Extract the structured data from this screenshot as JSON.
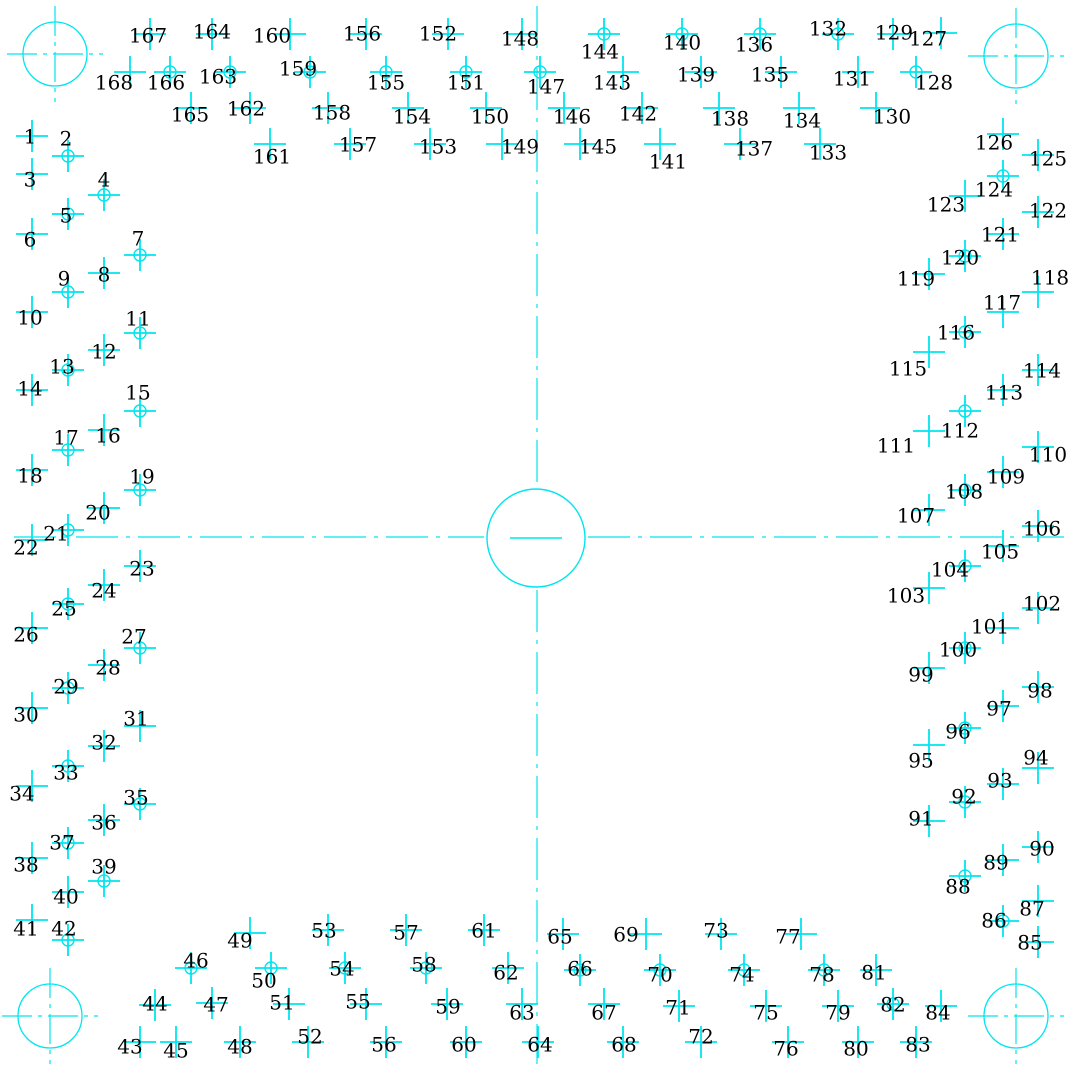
{
  "colors": {
    "line": "#00e5ee",
    "text": "#000000",
    "background": "#ffffff"
  },
  "labels": [
    "1",
    "2",
    "3",
    "4",
    "5",
    "6",
    "7",
    "8",
    "9",
    "10",
    "11",
    "12",
    "13",
    "14",
    "15",
    "16",
    "17",
    "18",
    "19",
    "20",
    "21",
    "22",
    "23",
    "24",
    "25",
    "26",
    "27",
    "28",
    "29",
    "30",
    "31",
    "32",
    "33",
    "34",
    "35",
    "36",
    "37",
    "38",
    "39",
    "40",
    "41",
    "42",
    "43",
    "44",
    "45",
    "46",
    "47",
    "48",
    "49",
    "50",
    "51",
    "52",
    "53",
    "54",
    "55",
    "56",
    "57",
    "58",
    "59",
    "60",
    "61",
    "62",
    "63",
    "64",
    "65",
    "66",
    "67",
    "68",
    "69",
    "70",
    "71",
    "72",
    "73",
    "74",
    "75",
    "76",
    "77",
    "78",
    "79",
    "80",
    "81",
    "82",
    "83",
    "84",
    "85",
    "86",
    "87",
    "88",
    "89",
    "90",
    "91",
    "92",
    "93",
    "94",
    "95",
    "96",
    "97",
    "98",
    "99",
    "100",
    "101",
    "102",
    "103",
    "104",
    "105",
    "106",
    "107",
    "108",
    "109",
    "110",
    "111",
    "112",
    "113",
    "114",
    "115",
    "116",
    "117",
    "118",
    "119",
    "120",
    "121",
    "122",
    "123",
    "124",
    "125",
    "126",
    "127",
    "128",
    "129",
    "130",
    "131",
    "132",
    "133",
    "134",
    "135",
    "136",
    "137",
    "138",
    "139",
    "140",
    "141",
    "142",
    "143",
    "144",
    "145",
    "146",
    "147",
    "148",
    "149",
    "150",
    "151",
    "152",
    "153",
    "154",
    "155",
    "156",
    "157",
    "158",
    "159",
    "160",
    "161",
    "162",
    "163",
    "164",
    "165",
    "166",
    "167",
    "168"
  ],
  "circled_labels": [
    "2",
    "4",
    "5",
    "7",
    "9",
    "11",
    "13",
    "15",
    "17",
    "19",
    "21",
    "25",
    "27",
    "29",
    "33",
    "35",
    "37",
    "39",
    "42",
    "46",
    "50",
    "54",
    "58",
    "66",
    "70",
    "74",
    "78",
    "82",
    "86",
    "88",
    "92",
    "96",
    "100",
    "104",
    "108",
    "112",
    "116",
    "120",
    "124",
    "128",
    "132",
    "136",
    "140",
    "144",
    "147",
    "151",
    "155",
    "159",
    "163",
    "166"
  ]
}
